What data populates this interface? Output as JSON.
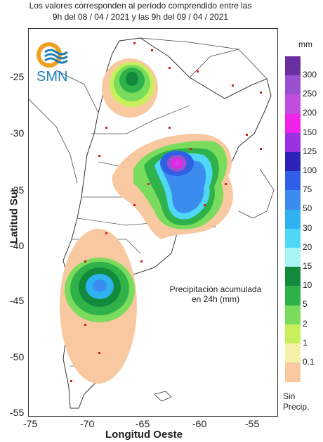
{
  "header": {
    "line1": "Los valores corresponden al período comprendido entre las",
    "line2": "9h del 08 / 04 / 2021  y las 9h del 09 / 04 / 2021"
  },
  "logo": {
    "text": "SMN"
  },
  "axes": {
    "x_title": "Longitud Oeste",
    "y_title": "Latitud Sur",
    "x_ticks": [
      "-75",
      "-70",
      "-65",
      "-60",
      "-55"
    ],
    "y_ticks": [
      "-25",
      "-30",
      "-35",
      "-40",
      "-45",
      "-50",
      "-55"
    ]
  },
  "note": {
    "line1": "Precipitación acumulada",
    "line2": "en 24h (mm)"
  },
  "legend": {
    "unit": "mm",
    "items": [
      {
        "label": "300",
        "color": "#6a2fa0"
      },
      {
        "label": "250",
        "color": "#9b4fd1"
      },
      {
        "label": "200",
        "color": "#c04de0"
      },
      {
        "label": "150",
        "color": "#ee22e8"
      },
      {
        "label": "125",
        "color": "#9b31e0"
      },
      {
        "label": "100",
        "color": "#2b22b8"
      },
      {
        "label": "75",
        "color": "#2f5fe6"
      },
      {
        "label": "50",
        "color": "#3c8cf0"
      },
      {
        "label": "30",
        "color": "#2fb3f0"
      },
      {
        "label": "20",
        "color": "#4ed8f6"
      },
      {
        "label": "15",
        "color": "#a8f4f4"
      },
      {
        "label": "10",
        "color": "#128a3c"
      },
      {
        "label": "5",
        "color": "#2fb24a"
      },
      {
        "label": "2",
        "color": "#7adc5c"
      },
      {
        "label": "1",
        "color": "#c8f05a"
      },
      {
        "label": "0.1",
        "color": "#f3f0a8"
      },
      {
        "label": "",
        "color": "#f8c9a0"
      }
    ],
    "no_precip": {
      "line1": "Sin",
      "line2": "Precip."
    }
  }
}
